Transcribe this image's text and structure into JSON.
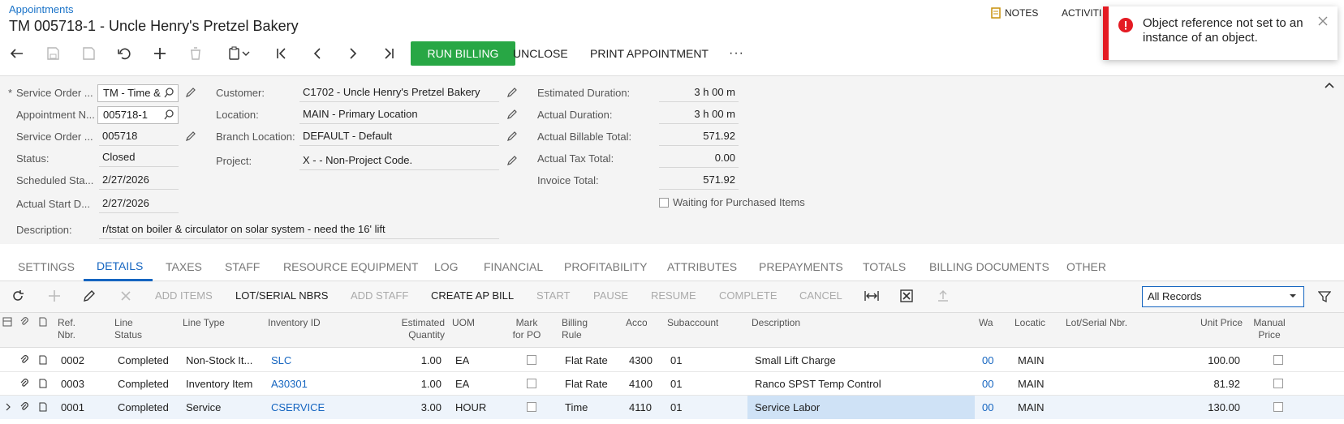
{
  "breadcrumb": "Appointments",
  "page_title": "TM 005718-1 - Uncle Henry's Pretzel Bakery",
  "top_links": {
    "notes": "NOTES",
    "activities": "ACTIVITI"
  },
  "toolbar": {
    "run_billing": "RUN BILLING",
    "unclose": "UNCLOSE",
    "print": "PRINT APPOINTMENT",
    "more": "···"
  },
  "toast": {
    "message": "Object reference not set to an instance of an object.",
    "color": "#e41b23"
  },
  "form": {
    "col1": [
      {
        "label": "Service Order ...",
        "value": "TM - Time &",
        "required": true
      },
      {
        "label": "Appointment N...",
        "value": "005718-1"
      },
      {
        "label": "Service Order ...",
        "value": "005718"
      },
      {
        "label": "Status:",
        "value": "Closed"
      },
      {
        "label": "Scheduled Sta...",
        "value": "2/27/2026"
      },
      {
        "label": "Actual Start D...",
        "value": "2/27/2026"
      }
    ],
    "description_label": "Description:",
    "description_value": "r/tstat on boiler & circulator on solar system - need the 16' lift",
    "col2": [
      {
        "label": "Customer:",
        "value": "C1702 - Uncle Henry's Pretzel Bakery"
      },
      {
        "label": "Location:",
        "value": "MAIN - Primary Location"
      },
      {
        "label": "Branch Location:",
        "value": "DEFAULT - Default"
      },
      {
        "label": "Project:",
        "value": "X - - Non-Project Code."
      }
    ],
    "col3": [
      {
        "label": "Estimated Duration:",
        "value": "3 h 00 m"
      },
      {
        "label": "Actual Duration:",
        "value": "3 h 00 m"
      },
      {
        "label": "Actual Billable Total:",
        "value": "571.92"
      },
      {
        "label": "Actual Tax Total:",
        "value": "0.00"
      },
      {
        "label": "Invoice Total:",
        "value": "571.92"
      }
    ],
    "waiting_label": "Waiting for Purchased Items"
  },
  "tabs": [
    "SETTINGS",
    "DETAILS",
    "TAXES",
    "STAFF",
    "RESOURCE EQUIPMENT",
    "LOG",
    "FINANCIAL",
    "PROFITABILITY",
    "ATTRIBUTES",
    "PREPAYMENTS",
    "TOTALS",
    "BILLING DOCUMENTS",
    "OTHER"
  ],
  "active_tab": "DETAILS",
  "grid_toolbar": {
    "add_items": "ADD ITEMS",
    "lot_serial": "LOT/SERIAL NBRS",
    "add_staff": "ADD STAFF",
    "create_ap_bill": "CREATE AP BILL",
    "start": "START",
    "pause": "PAUSE",
    "resume": "RESUME",
    "complete": "COMPLETE",
    "cancel": "CANCEL",
    "filter_value": "All Records"
  },
  "columns": {
    "ref": [
      "Ref.",
      "Nbr."
    ],
    "line_status": [
      "Line",
      "Status"
    ],
    "line_type": "Line Type",
    "inventory": "Inventory ID",
    "est_qty": [
      "Estimated",
      "Quantity"
    ],
    "uom": "UOM",
    "mark_po": [
      "Mark",
      "for PO"
    ],
    "billing_rule": [
      "Billing",
      "Rule"
    ],
    "account": "Acco",
    "subaccount": "Subaccount",
    "description": "Description",
    "warehouse": "Wa",
    "location": "Locatic",
    "lot_serial": "Lot/Serial Nbr.",
    "unit_price": "Unit Price",
    "manual_price": [
      "Manual",
      "Price"
    ]
  },
  "rows": [
    {
      "ref": "0002",
      "status": "Completed",
      "line_type": "Non-Stock It...",
      "inventory": "SLC",
      "qty": "1.00",
      "uom": "EA",
      "billing_rule": "Flat Rate",
      "account": "4300",
      "subaccount": "01",
      "description": "Small Lift Charge",
      "warehouse": "00",
      "location": "MAIN",
      "unit_price": "100.00"
    },
    {
      "ref": "0003",
      "status": "Completed",
      "line_type": "Inventory Item",
      "inventory": "A30301",
      "qty": "1.00",
      "uom": "EA",
      "billing_rule": "Flat Rate",
      "account": "4100",
      "subaccount": "01",
      "description": "Ranco SPST Temp Control",
      "warehouse": "00",
      "location": "MAIN",
      "unit_price": "81.92"
    },
    {
      "ref": "0001",
      "status": "Completed",
      "line_type": "Service",
      "inventory": "CSERVICE",
      "qty": "3.00",
      "uom": "HOUR",
      "billing_rule": "Time",
      "account": "4110",
      "subaccount": "01",
      "description": "Service Labor",
      "warehouse": "00",
      "location": "MAIN",
      "unit_price": "130.00"
    }
  ],
  "colors": {
    "accent": "#1565c0",
    "run_billing": "#28a745",
    "selected_row": "#e3eef9",
    "error": "#e41b23"
  }
}
